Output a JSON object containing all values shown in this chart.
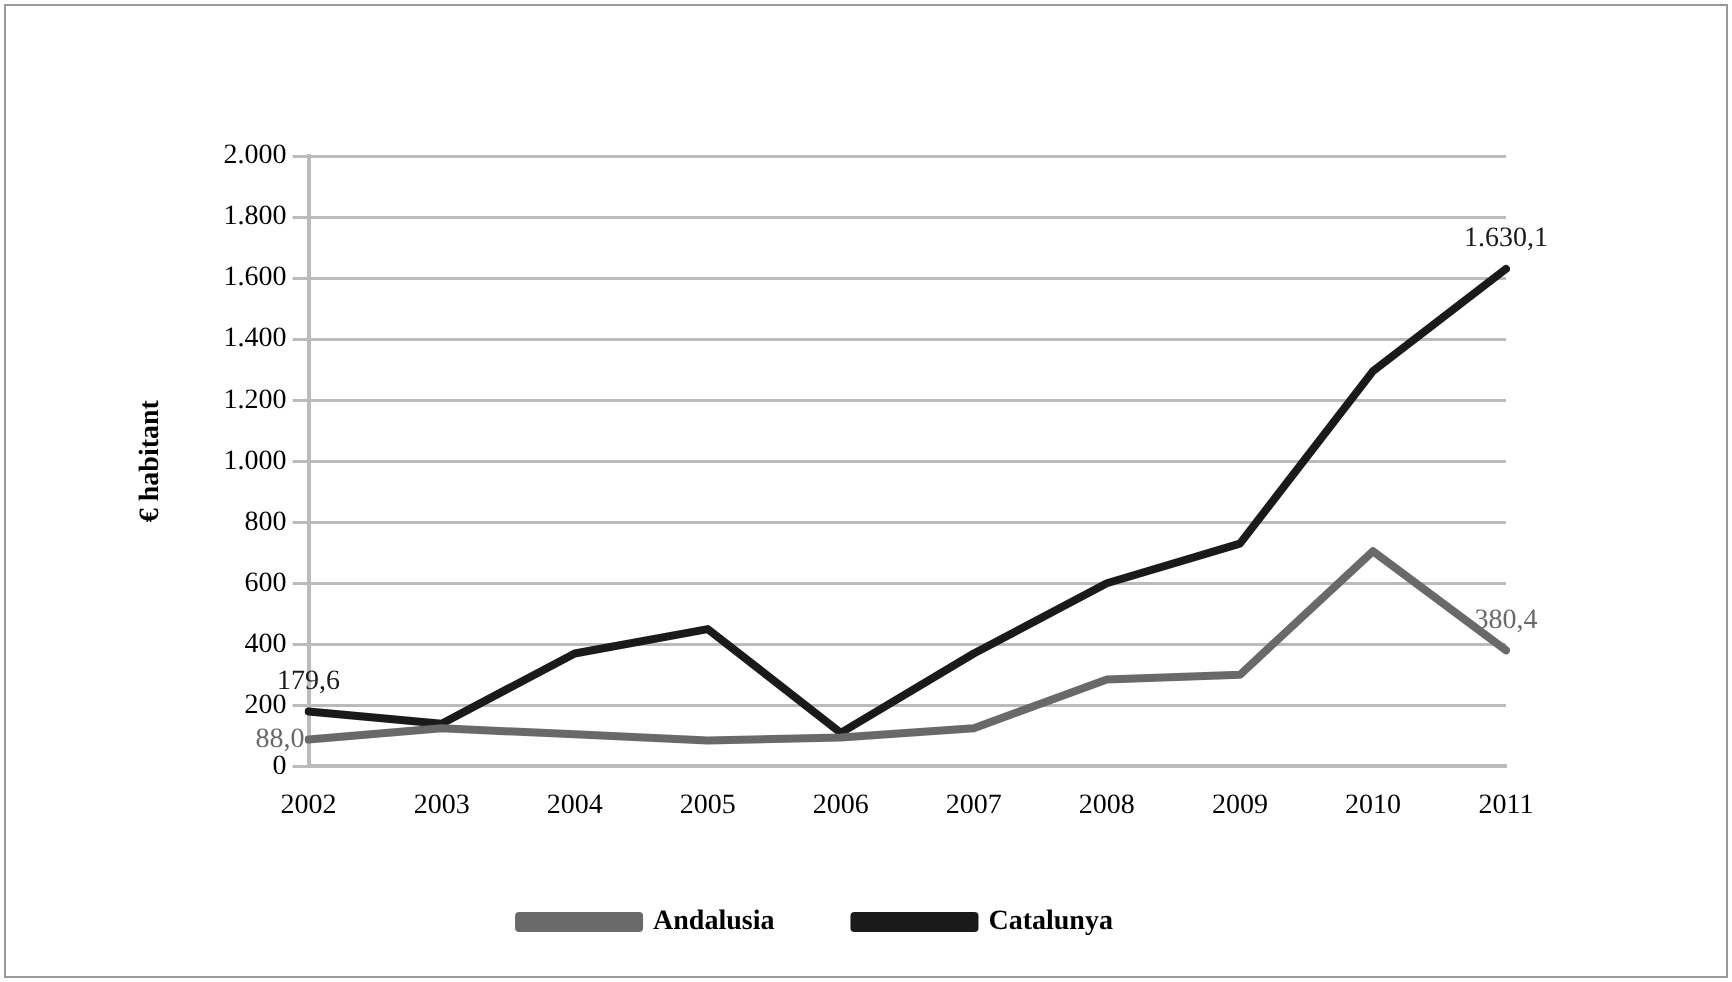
{
  "chart_data": {
    "type": "line",
    "ylabel": "€ habitant",
    "categories": [
      "2002",
      "2003",
      "2004",
      "2005",
      "2006",
      "2007",
      "2008",
      "2009",
      "2010",
      "2011"
    ],
    "series": [
      {
        "name": "Andalusia",
        "color": "#696969",
        "values": [
          88.0,
          125,
          105,
          85,
          95,
          125,
          285,
          300,
          705,
          380.4
        ],
        "value_labels": [
          "88,0",
          null,
          null,
          null,
          null,
          null,
          null,
          null,
          null,
          "380,4"
        ]
      },
      {
        "name": "Catalunya",
        "color": "#1a1a1a",
        "values": [
          179.6,
          140,
          370,
          450,
          110,
          370,
          600,
          730,
          1295,
          1630.1
        ],
        "value_labels": [
          "179,6",
          null,
          null,
          null,
          null,
          null,
          null,
          null,
          null,
          "1.630,1"
        ]
      }
    ],
    "ylim": [
      0,
      2000
    ],
    "yticks": [
      0,
      200,
      400,
      600,
      800,
      {
        "value": 1000,
        "label": "1.000"
      },
      {
        "value": 1200,
        "label": "1.200"
      },
      {
        "value": 1400,
        "label": "1.400"
      },
      {
        "value": 1600,
        "label": "1.600"
      },
      {
        "value": 1800,
        "label": "1.800"
      },
      {
        "value": 2000,
        "label": "2.000"
      }
    ],
    "grid": "y",
    "legend": "bottom",
    "marker": "none",
    "line_style": "solid"
  }
}
